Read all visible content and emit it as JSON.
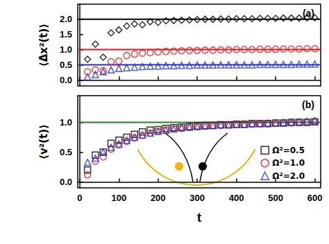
{
  "chart_data": [
    {
      "type": "scatter",
      "title": "(a)",
      "y_label": "⟨Δx²(t)⟩",
      "tick_labels": "y",
      "grid": false,
      "xlim": [
        -5,
        615
      ],
      "xticks": [
        0,
        100,
        200,
        300,
        400,
        500,
        600
      ],
      "ylim": [
        -0.2,
        2.5
      ],
      "yticks": [
        {
          "value": 0,
          "label": "0.0"
        },
        {
          "value": 0.5,
          "label": "0.5"
        },
        {
          "value": 1,
          "label": "1.0"
        },
        {
          "value": 1.5,
          "label": "1.5"
        },
        {
          "value": 2,
          "label": "2.0"
        }
      ],
      "x": [
        20,
        40,
        60,
        80,
        100,
        120,
        140,
        160,
        180,
        200,
        220,
        240,
        260,
        280,
        300,
        320,
        340,
        360,
        380,
        400,
        420,
        440,
        460,
        480,
        500,
        520,
        540,
        560,
        580,
        600
      ],
      "hlines": [
        {
          "y": 2.0,
          "color": "#000000"
        },
        {
          "y": 1.0,
          "color": "#e8141b"
        },
        {
          "y": 0.5,
          "color": "#1f2de0"
        }
      ],
      "series": [
        {
          "name": "Ω²=0.5",
          "color": "#000000",
          "marker": "diamond",
          "values": [
            0.68,
            1.18,
            0.75,
            1.55,
            1.65,
            1.78,
            1.85,
            1.82,
            1.92,
            1.9,
            1.95,
            1.96,
            1.97,
            1.98,
            1.99,
            2.0,
            2.0,
            2.01,
            2.01,
            2.02,
            2.02,
            2.02,
            2.03,
            2.03,
            2.03,
            2.04,
            2.04,
            2.04,
            2.05,
            2.05
          ]
        },
        {
          "name": "Ω²=1.0",
          "color": "#e8141b",
          "marker": "circle",
          "values": [
            0.27,
            0.33,
            0.3,
            0.6,
            0.62,
            0.8,
            0.85,
            0.88,
            0.9,
            0.92,
            0.94,
            0.95,
            0.96,
            0.97,
            0.97,
            0.98,
            0.98,
            0.99,
            0.99,
            1.0,
            1.0,
            1.0,
            1.01,
            1.01,
            1.01,
            1.02,
            1.02,
            1.02,
            1.03,
            1.03
          ]
        },
        {
          "name": "Ω²=2.0",
          "color": "#1f2de0",
          "marker": "triangle",
          "values": [
            0.1,
            0.18,
            0.27,
            0.33,
            0.38,
            0.4,
            0.42,
            0.44,
            0.45,
            0.46,
            0.47,
            0.47,
            0.48,
            0.48,
            0.49,
            0.49,
            0.49,
            0.5,
            0.5,
            0.5,
            0.5,
            0.5,
            0.51,
            0.51,
            0.51,
            0.51,
            0.51,
            0.52,
            0.52,
            0.52
          ]
        }
      ]
    },
    {
      "type": "scatter",
      "title": "(b)",
      "x_label": "t",
      "y_label": "⟨v²(t)⟩",
      "grid": false,
      "legend": "lower right",
      "xlim": [
        -5,
        615
      ],
      "xticks": [
        0,
        100,
        200,
        300,
        400,
        500,
        600
      ],
      "ylim": [
        -0.1,
        1.45
      ],
      "yticks": [
        {
          "value": 0,
          "label": "0.0"
        },
        {
          "value": 0.5,
          "label": "0.5"
        },
        {
          "value": 1,
          "label": "1.0"
        }
      ],
      "x": [
        20,
        40,
        60,
        80,
        100,
        120,
        140,
        160,
        180,
        200,
        220,
        240,
        260,
        280,
        300,
        320,
        340,
        360,
        380,
        400,
        420,
        440,
        460,
        480,
        500,
        520,
        540,
        560,
        580,
        600
      ],
      "hlines": [
        {
          "y": 1.0,
          "color": "#1a8a1a"
        }
      ],
      "series": [
        {
          "name": "Ω²=0.5",
          "color": "#000000",
          "marker": "square",
          "values": [
            0.2,
            0.45,
            0.5,
            0.65,
            0.7,
            0.75,
            0.8,
            0.84,
            0.87,
            0.88,
            0.9,
            0.91,
            0.92,
            0.93,
            0.94,
            0.95,
            0.95,
            0.96,
            0.96,
            0.97,
            0.97,
            0.98,
            0.98,
            0.98,
            0.99,
            0.99,
            1.0,
            1.0,
            1.0,
            1.01
          ]
        },
        {
          "name": "Ω²=1.0",
          "color": "#e8141b",
          "marker": "circle",
          "values": [
            0.12,
            0.35,
            0.42,
            0.55,
            0.62,
            0.68,
            0.74,
            0.78,
            0.82,
            0.85,
            0.87,
            0.89,
            0.9,
            0.92,
            0.93,
            0.94,
            0.95,
            0.95,
            0.96,
            0.97,
            0.97,
            0.97,
            0.98,
            0.98,
            0.99,
            0.99,
            0.99,
            1.0,
            1.0,
            1.01
          ]
        },
        {
          "name": "Ω²=2.0",
          "color": "#1f2de0",
          "marker": "triangle",
          "values": [
            0.33,
            0.4,
            0.5,
            0.58,
            0.64,
            0.7,
            0.75,
            0.79,
            0.82,
            0.85,
            0.87,
            0.89,
            0.91,
            0.92,
            0.93,
            0.94,
            0.95,
            0.96,
            0.96,
            0.97,
            0.97,
            0.98,
            0.98,
            0.99,
            0.99,
            1.0,
            1.0,
            1.01,
            1.02,
            1.03
          ]
        }
      ]
    }
  ]
}
